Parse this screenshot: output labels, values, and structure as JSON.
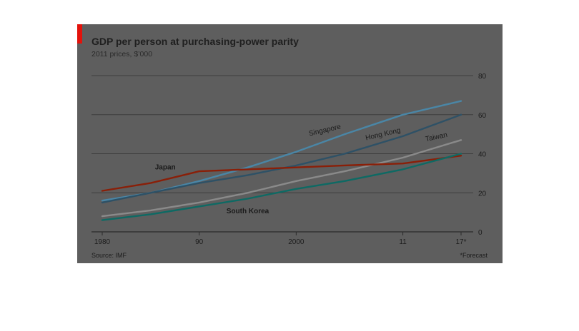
{
  "chart_data": {
    "type": "line",
    "title": "GDP per person at purchasing-power parity",
    "subtitle": "2011 prices, $’000",
    "source": "Source: IMF",
    "footnote": "*Forecast",
    "x_ticks": [
      {
        "value": 1980,
        "label": "1980"
      },
      {
        "value": 1990,
        "label": "90"
      },
      {
        "value": 2000,
        "label": "2000"
      },
      {
        "value": 2011,
        "label": "11"
      },
      {
        "value": 2017,
        "label": "17*"
      }
    ],
    "y_ticks": [
      0,
      20,
      40,
      60,
      80
    ],
    "xlim": [
      1980,
      2017
    ],
    "ylim": [
      0,
      80
    ],
    "grid": true,
    "y_axis_side": "right",
    "series": [
      {
        "name": "Singapore",
        "color": "#4a86a6",
        "x": [
          1980,
          1985,
          1990,
          1995,
          2000,
          2005,
          2011,
          2017
        ],
        "y": [
          16,
          20,
          26,
          33,
          41,
          50,
          60,
          67
        ]
      },
      {
        "name": "Hong Kong",
        "color": "#2e5166",
        "x": [
          1980,
          1985,
          1990,
          1995,
          2000,
          2005,
          2011,
          2017
        ],
        "y": [
          15,
          20,
          25,
          29,
          34,
          40,
          49,
          60
        ]
      },
      {
        "name": "Taiwan",
        "color": "#8a8a8a",
        "x": [
          1980,
          1985,
          1990,
          1995,
          2000,
          2005,
          2011,
          2017
        ],
        "y": [
          8,
          11,
          15,
          20,
          26,
          31,
          38,
          47
        ]
      },
      {
        "name": "Japan",
        "color": "#8a1f08",
        "x": [
          1980,
          1985,
          1990,
          1995,
          2000,
          2005,
          2011,
          2017
        ],
        "y": [
          21,
          25,
          31,
          32,
          33,
          34,
          35,
          39
        ]
      },
      {
        "name": "South Korea",
        "color": "#0e6a64",
        "x": [
          1980,
          1985,
          1990,
          1995,
          2000,
          2005,
          2011,
          2017
        ],
        "y": [
          6,
          9,
          13,
          17,
          22,
          26,
          32,
          40
        ]
      }
    ],
    "series_labels": [
      {
        "series": "Singapore",
        "x": 2003,
        "y": 51,
        "rotate": -13
      },
      {
        "series": "Hong Kong",
        "x": 2009,
        "y": 49,
        "rotate": -13
      },
      {
        "series": "Taiwan",
        "x": 2014.5,
        "y": 47.5,
        "rotate": -12
      },
      {
        "series": "Japan",
        "x": 1986.5,
        "y": 32,
        "rotate": 0
      },
      {
        "series": "South Korea",
        "x": 1995,
        "y": 9.5,
        "rotate": 0
      }
    ]
  },
  "colors": {
    "panel": "#5e5e5e",
    "gridline": "#3e3e3e",
    "accent": "#e3120b",
    "text": "#1f1f1f",
    "tick_text": "#1c1c1c"
  }
}
